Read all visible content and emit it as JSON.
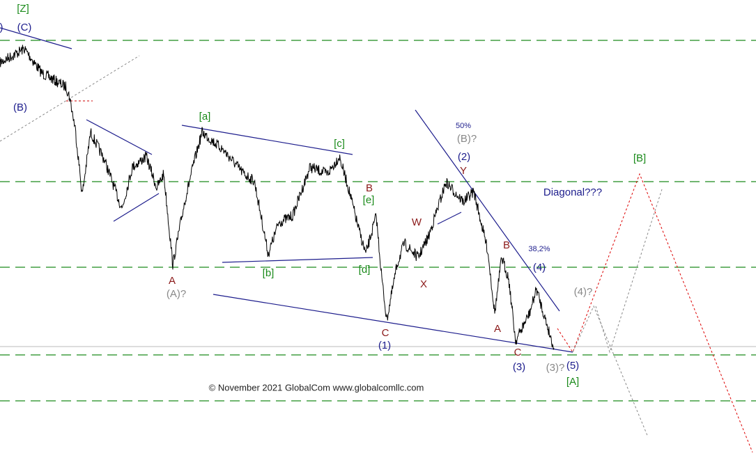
{
  "labels": [
    "[Z]",
    ")",
    "(C)",
    "(B)",
    "[a]",
    "[c]",
    "B",
    "[e]",
    "[b]",
    "[d]",
    "A",
    "(A)?",
    "W",
    "X",
    "Y",
    "50%",
    "(B)?",
    "(2)",
    "C",
    "(1)",
    "Diagonal???",
    "38,2%",
    "B",
    "(4)",
    "A",
    "C",
    "(3)",
    "(3)?",
    "(5)",
    "[A]",
    "(4)?",
    "[B]"
  ],
  "copyright": "© November 2021 GlobalCom www.globalcomllc.com"
}
